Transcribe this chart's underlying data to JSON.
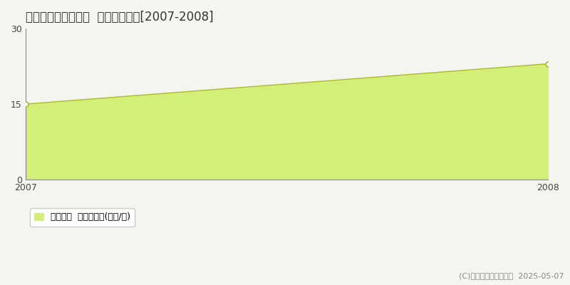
{
  "title": "邑楽郡大泉町いずみ  土地価格推移[2007-2008]",
  "x": [
    2007,
    2008
  ],
  "y": [
    15.0,
    23.0
  ],
  "fill_color": "#d4ee7a",
  "line_color": "#aabb30",
  "marker_color": "#aabb30",
  "dashed_line_y": 15,
  "dashed_line_color": "#bbbbbb",
  "ylim": [
    0,
    30
  ],
  "xlim": [
    2007,
    2008
  ],
  "yticks": [
    0,
    15,
    30
  ],
  "xticks": [
    2007,
    2008
  ],
  "legend_label": "土地価格  平均坪単価(万円/坪)",
  "copyright": "(C)土地価格ドットコム  2025-05-07",
  "bg_color": "#f5f5f0",
  "plot_bg_color": "#f5f5f0",
  "title_fontsize": 12,
  "tick_fontsize": 9,
  "legend_fontsize": 9,
  "copyright_fontsize": 8
}
